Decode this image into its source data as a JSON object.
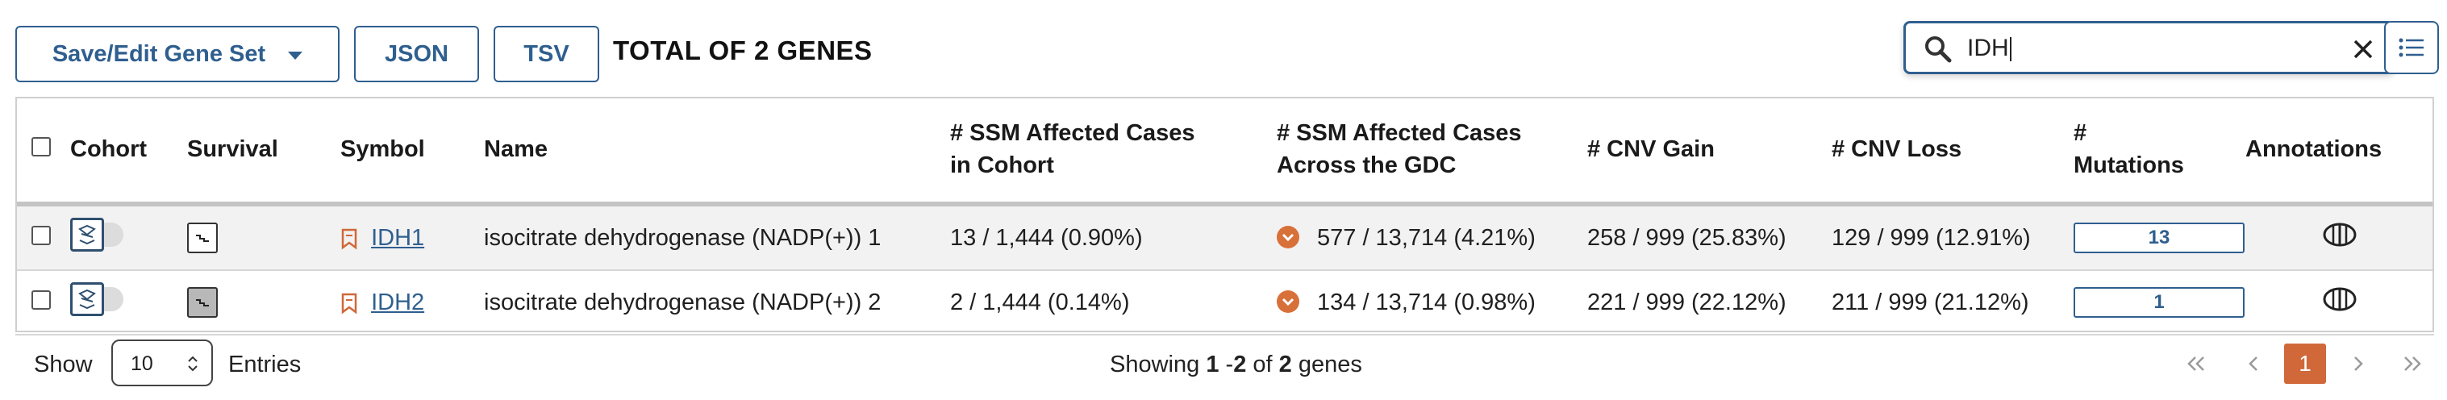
{
  "toolbar": {
    "save_edit_label": "Save/Edit Gene Set",
    "json_label": "JSON",
    "tsv_label": "TSV",
    "total_text": "TOTAL OF 2 GENES"
  },
  "search": {
    "value": "IDH"
  },
  "table": {
    "headers": {
      "cohort": "Cohort",
      "survival": "Survival",
      "symbol": "Symbol",
      "name": "Name",
      "ssm_cohort_l1": "# SSM Affected Cases",
      "ssm_cohort_l2": "in Cohort",
      "ssm_gdc_l1": "# SSM Affected Cases",
      "ssm_gdc_l2": "Across the GDC",
      "cnv_gain": "# CNV Gain",
      "cnv_loss": "# CNV Loss",
      "mutations_l1": "#",
      "mutations_l2": "Mutations",
      "annotations": "Annotations"
    },
    "rows": [
      {
        "symbol": "IDH1",
        "name": "isocitrate dehydrogenase (NADP(+)) 1",
        "ssm_cohort": "13 / 1,444 (0.90%)",
        "ssm_gdc": "577 / 13,714 (4.21%)",
        "cnv_gain": "258 / 999 (25.83%)",
        "cnv_loss": "129 / 999 (12.91%)",
        "mutations": "13",
        "survival_active": false
      },
      {
        "symbol": "IDH2",
        "name": "isocitrate dehydrogenase (NADP(+)) 2",
        "ssm_cohort": "2 / 1,444 (0.14%)",
        "ssm_gdc": "134 / 13,714 (0.98%)",
        "cnv_gain": "221 / 999 (22.12%)",
        "cnv_loss": "211 / 999 (21.12%)",
        "mutations": "1",
        "survival_active": true
      }
    ]
  },
  "footer": {
    "show_label": "Show",
    "page_size": "10",
    "entries_label": "Entries",
    "showing_prefix": "Showing",
    "range_start": "1",
    "range_sep": "-",
    "range_end": "2",
    "of_label": "of",
    "total": "2",
    "unit": "genes",
    "current_page": "1"
  },
  "colors": {
    "accent": "#2f5f8f",
    "orange": "#d0683a"
  },
  "icons": [
    "chevron-down-icon",
    "search-icon",
    "close-icon",
    "menu-icon",
    "cohort-toggle-icon",
    "survival-plot-icon",
    "gene-bookmark-icon",
    "info-circle-icon",
    "annotations-icon",
    "first-page-icon",
    "prev-page-icon",
    "next-page-icon",
    "last-page-icon"
  ]
}
